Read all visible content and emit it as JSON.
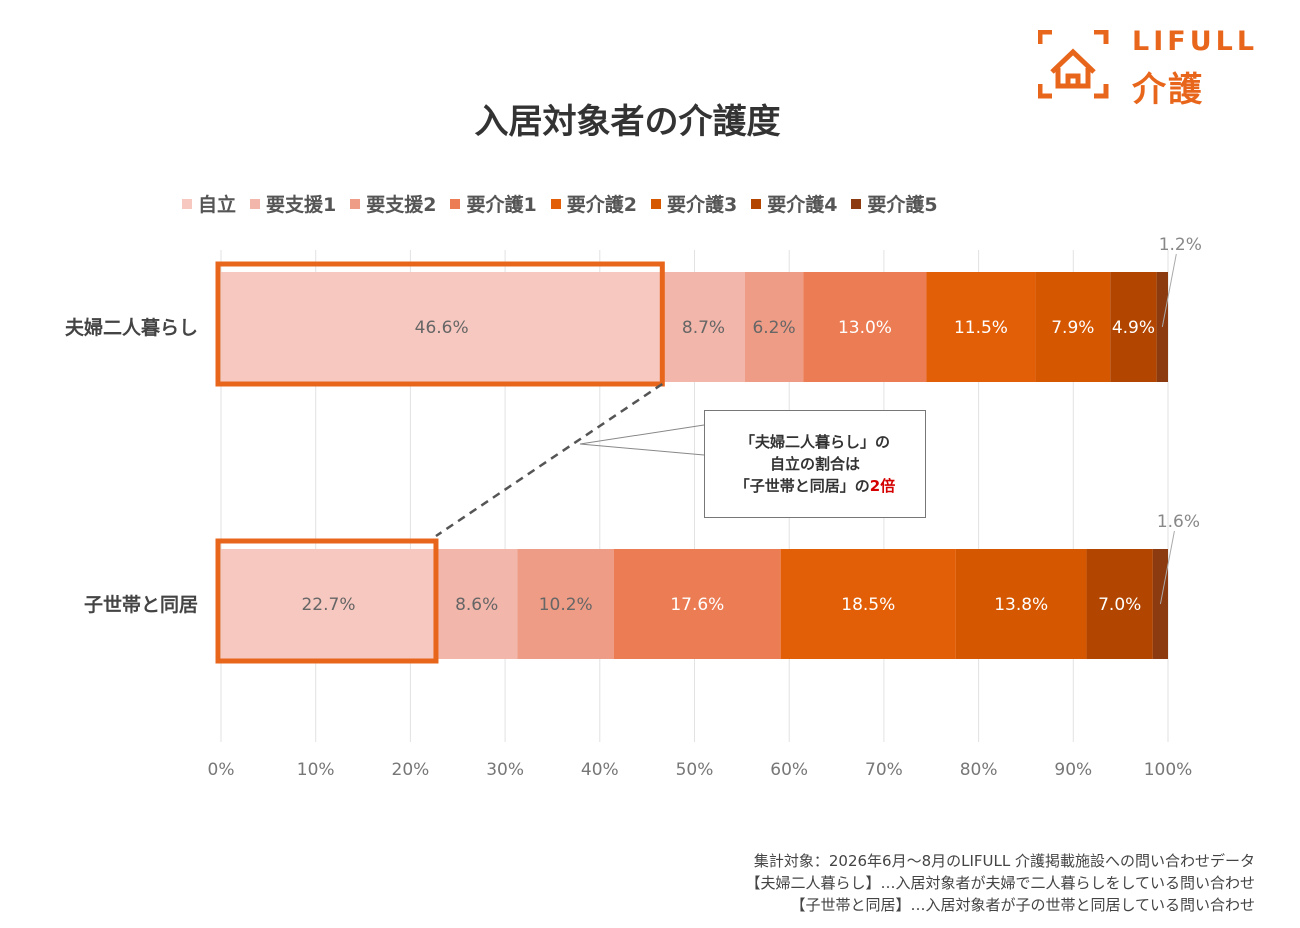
{
  "logo": {
    "brand": "LIFULL",
    "sub": "介護",
    "color": "#e8661c"
  },
  "chart_data": {
    "type": "bar",
    "orientation": "horizontal-stacked-100",
    "title": "入居対象者の介護度",
    "categories": [
      "夫婦二人暮らし",
      "子世帯と同居"
    ],
    "series": [
      {
        "name": "自立",
        "color": "#f6c8c0",
        "values": [
          46.6,
          22.7
        ],
        "labels": [
          "46.6%",
          "22.7%"
        ]
      },
      {
        "name": "要支援1",
        "color": "#f3b6ab",
        "values": [
          8.7,
          8.6
        ],
        "labels": [
          "8.7%",
          "8.6%"
        ]
      },
      {
        "name": "要支援2",
        "color": "#ee9c86",
        "values": [
          6.2,
          10.2
        ],
        "labels": [
          "6.2%",
          "10.2%"
        ]
      },
      {
        "name": "要介護1",
        "color": "#ec7c53",
        "values": [
          13.0,
          17.6
        ],
        "labels": [
          "13.0%",
          "17.6%"
        ]
      },
      {
        "name": "要介護2",
        "color": "#e35f07",
        "values": [
          11.5,
          18.5
        ],
        "labels": [
          "11.5%",
          "18.5%"
        ]
      },
      {
        "name": "要介護3",
        "color": "#d55700",
        "values": [
          7.9,
          13.8
        ],
        "labels": [
          "7.9%",
          "13.8%"
        ]
      },
      {
        "name": "要介護4",
        "color": "#b24600",
        "values": [
          4.9,
          7.0
        ],
        "labels": [
          "4.9%",
          "7.0%"
        ]
      },
      {
        "name": "要介護5",
        "color": "#8c3a10",
        "values": [
          1.2,
          1.6
        ],
        "labels": [
          "1.2%",
          "1.6%"
        ]
      }
    ],
    "x_ticks": [
      "0%",
      "10%",
      "20%",
      "30%",
      "40%",
      "50%",
      "60%",
      "70%",
      "80%",
      "90%",
      "100%"
    ],
    "xlim": [
      0,
      100
    ],
    "grid": "vertical",
    "legend": "top",
    "highlight_series": "自立",
    "callout": {
      "line1": "「夫婦二人暮らし」の",
      "line2": "自立の割合は",
      "line3_prefix": "「子世帯と同居」の",
      "line3_emphasis": "2倍",
      "emphasis_color": "#d40000"
    }
  },
  "footnotes": [
    "集計対象：2026年6月～8月のLIFULL 介護掲載施設への問い合わせデータ",
    "【夫婦二人暮らし】…入居対象者が夫婦で二人暮らしをしている問い合わせ",
    "【子世帯と同居】…入居対象者が子の世帯と同居している問い合わせ"
  ],
  "colors": {
    "highlight_border": "#e8661c",
    "label_dark": "#666666",
    "label_light": "#ffffff"
  }
}
